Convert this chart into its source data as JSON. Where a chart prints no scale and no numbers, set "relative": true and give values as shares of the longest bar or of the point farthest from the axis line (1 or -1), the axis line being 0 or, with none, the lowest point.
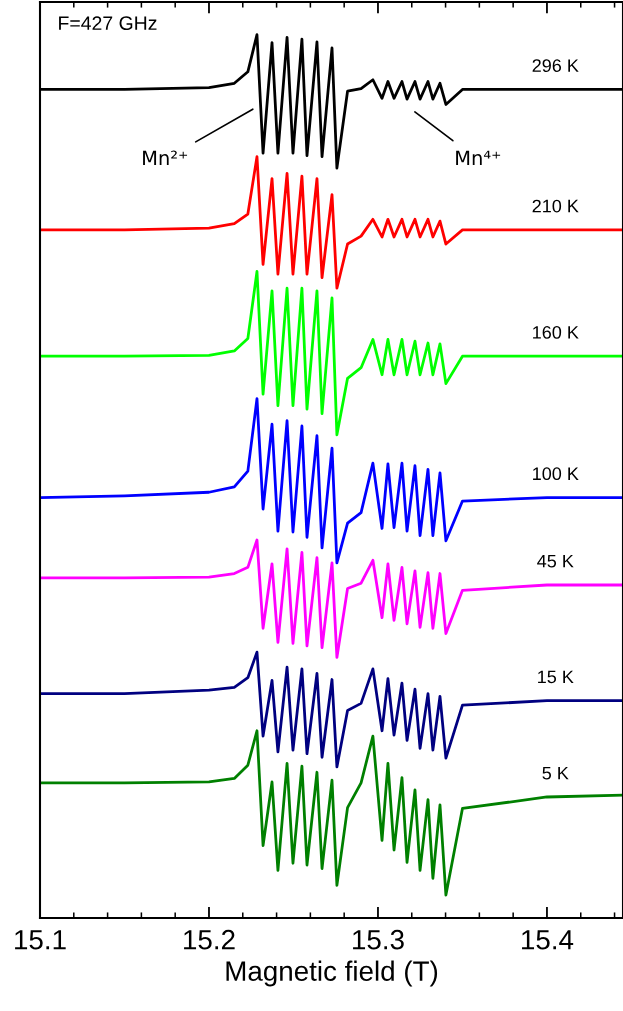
{
  "chart_data": {
    "type": "line",
    "relative": true,
    "xlabel": "Magnetic field (T)",
    "xlim": [
      15.1,
      15.445
    ],
    "xticks": [
      15.1,
      15.2,
      15.3,
      15.4
    ],
    "grid": false,
    "marker": "none",
    "line_style": "solid",
    "x": [
      15.1,
      15.15,
      15.2,
      15.215,
      15.223,
      15.2284,
      15.232,
      15.2373,
      15.2408,
      15.2462,
      15.2497,
      15.255,
      15.258,
      15.2639,
      15.2669,
      15.2728,
      15.2757,
      15.282,
      15.29,
      15.297,
      15.3024,
      15.3059,
      15.3095,
      15.3142,
      15.3172,
      15.3219,
      15.3249,
      15.3296,
      15.3325,
      15.3367,
      15.3402,
      15.35,
      15.4,
      15.445
    ],
    "series": [
      {
        "name": "296 K",
        "color": "#000000",
        "values": [
          0.938,
          0.938,
          0.94,
          0.945,
          0.958,
          1.0,
          0.866,
          0.991,
          0.866,
          0.997,
          0.866,
          0.995,
          0.863,
          0.992,
          0.862,
          0.985,
          0.849,
          0.936,
          0.939,
          0.949,
          0.928,
          0.947,
          0.928,
          0.947,
          0.927,
          0.947,
          0.927,
          0.947,
          0.927,
          0.945,
          0.921,
          0.938,
          0.938,
          0.938
        ]
      },
      {
        "name": "210 K",
        "color": "#ff0000",
        "values": [
          0.779,
          0.779,
          0.781,
          0.786,
          0.797,
          0.862,
          0.74,
          0.837,
          0.729,
          0.843,
          0.729,
          0.84,
          0.729,
          0.837,
          0.725,
          0.819,
          0.713,
          0.763,
          0.772,
          0.791,
          0.771,
          0.791,
          0.771,
          0.791,
          0.771,
          0.791,
          0.771,
          0.791,
          0.771,
          0.789,
          0.763,
          0.779,
          0.779,
          0.779
        ]
      },
      {
        "name": "160 K",
        "color": "#00ff00",
        "values": [
          0.636,
          0.636,
          0.637,
          0.642,
          0.656,
          0.732,
          0.593,
          0.71,
          0.58,
          0.713,
          0.58,
          0.713,
          0.576,
          0.71,
          0.571,
          0.702,
          0.547,
          0.611,
          0.623,
          0.655,
          0.615,
          0.655,
          0.615,
          0.655,
          0.615,
          0.653,
          0.615,
          0.651,
          0.615,
          0.65,
          0.605,
          0.636,
          0.636,
          0.636
        ]
      },
      {
        "name": "100 K",
        "color": "#0000ff",
        "values": [
          0.476,
          0.478,
          0.482,
          0.488,
          0.506,
          0.588,
          0.463,
          0.559,
          0.438,
          0.563,
          0.437,
          0.557,
          0.431,
          0.546,
          0.419,
          0.532,
          0.402,
          0.447,
          0.459,
          0.515,
          0.441,
          0.514,
          0.442,
          0.515,
          0.438,
          0.512,
          0.433,
          0.508,
          0.433,
          0.504,
          0.427,
          0.472,
          0.476,
          0.476
        ]
      },
      {
        "name": "45 K",
        "color": "#ff00ff",
        "values": [
          0.385,
          0.385,
          0.386,
          0.39,
          0.397,
          0.428,
          0.328,
          0.401,
          0.312,
          0.418,
          0.311,
          0.414,
          0.308,
          0.408,
          0.306,
          0.402,
          0.295,
          0.373,
          0.379,
          0.405,
          0.34,
          0.401,
          0.337,
          0.397,
          0.333,
          0.393,
          0.329,
          0.391,
          0.328,
          0.39,
          0.322,
          0.371,
          0.377,
          0.377
        ]
      },
      {
        "name": "15 K",
        "color": "#000080",
        "values": [
          0.254,
          0.254,
          0.258,
          0.261,
          0.272,
          0.301,
          0.206,
          0.269,
          0.188,
          0.284,
          0.19,
          0.282,
          0.186,
          0.277,
          0.182,
          0.27,
          0.171,
          0.235,
          0.243,
          0.282,
          0.212,
          0.271,
          0.207,
          0.266,
          0.201,
          0.259,
          0.192,
          0.254,
          0.19,
          0.251,
          0.181,
          0.241,
          0.246,
          0.246
        ]
      },
      {
        "name": "5 K",
        "color": "#008000",
        "values": [
          0.153,
          0.153,
          0.154,
          0.158,
          0.173,
          0.212,
          0.082,
          0.154,
          0.054,
          0.175,
          0.062,
          0.172,
          0.06,
          0.165,
          0.056,
          0.156,
          0.037,
          0.125,
          0.153,
          0.206,
          0.088,
          0.175,
          0.077,
          0.159,
          0.063,
          0.145,
          0.054,
          0.134,
          0.045,
          0.128,
          0.026,
          0.124,
          0.137,
          0.139
        ]
      }
    ],
    "annotations": [
      "F=427 GHz",
      "Mn²⁺",
      "Mn⁴⁺"
    ]
  }
}
